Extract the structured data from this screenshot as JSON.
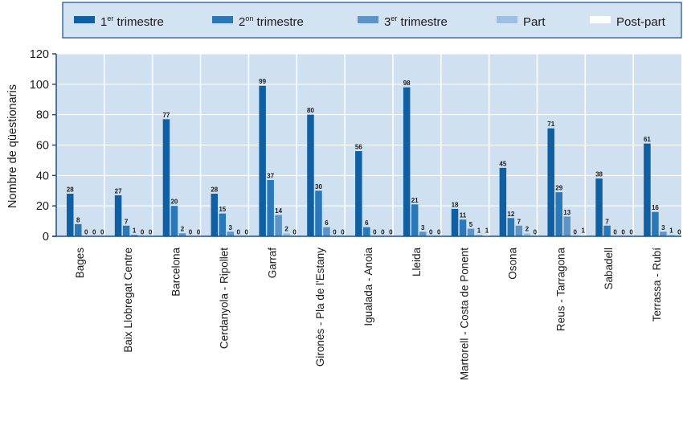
{
  "chart_data": {
    "type": "bar",
    "ylabel": "Nombre de qüestionaris",
    "ylim": [
      0,
      120
    ],
    "yticks": [
      0,
      20,
      40,
      60,
      80,
      100,
      120
    ],
    "grid": true,
    "legend_placement": "top",
    "categories": [
      "Bages",
      "Baix Llobregat Centre",
      "Barcelona",
      "Cerdanyola - Ripollet",
      "Garraf",
      "Gironès - Pla de l'Estany",
      "Igualada - Anoia",
      "Lleida",
      "Martorell - Costa de Ponent",
      "Osona",
      "Reus - Tarragona",
      "Sabadell",
      "Terrassa - Rubí"
    ],
    "series": [
      {
        "name": "1er trimestre",
        "name_base": "1",
        "name_sup": "er",
        "name_rest": " trimestre",
        "color": "#0f5fa2",
        "values": [
          28,
          27,
          77,
          28,
          99,
          80,
          56,
          98,
          18,
          45,
          71,
          38,
          61
        ]
      },
      {
        "name": "2on trimestre",
        "name_base": "2",
        "name_sup": "on",
        "name_rest": " trimestre",
        "color": "#2a78b8",
        "values": [
          8,
          7,
          20,
          15,
          37,
          30,
          6,
          21,
          11,
          12,
          29,
          7,
          16
        ]
      },
      {
        "name": "3er trimestre",
        "name_base": "3",
        "name_sup": "er",
        "name_rest": " trimestre",
        "color": "#5d94c8",
        "values": [
          0,
          1,
          2,
          3,
          14,
          6,
          0,
          3,
          5,
          7,
          13,
          0,
          3
        ]
      },
      {
        "name": "Part",
        "name_base": "Part",
        "name_sup": "",
        "name_rest": "",
        "color": "#9dbfe2",
        "values": [
          0,
          0,
          0,
          0,
          2,
          0,
          0,
          0,
          1,
          2,
          0,
          0,
          1
        ]
      },
      {
        "name": "Post-part",
        "name_base": "Post-part",
        "name_sup": "",
        "name_rest": "",
        "color": "#ffffff",
        "values": [
          0,
          0,
          0,
          0,
          0,
          0,
          0,
          0,
          1,
          0,
          1,
          0,
          0
        ]
      }
    ],
    "colors": {
      "plot_background": "#cfe0f1",
      "legend_background": "#d4e3f2",
      "legend_border": "#3a6fa6",
      "grid": "#ffffff",
      "axis": "#1d4f86"
    }
  }
}
